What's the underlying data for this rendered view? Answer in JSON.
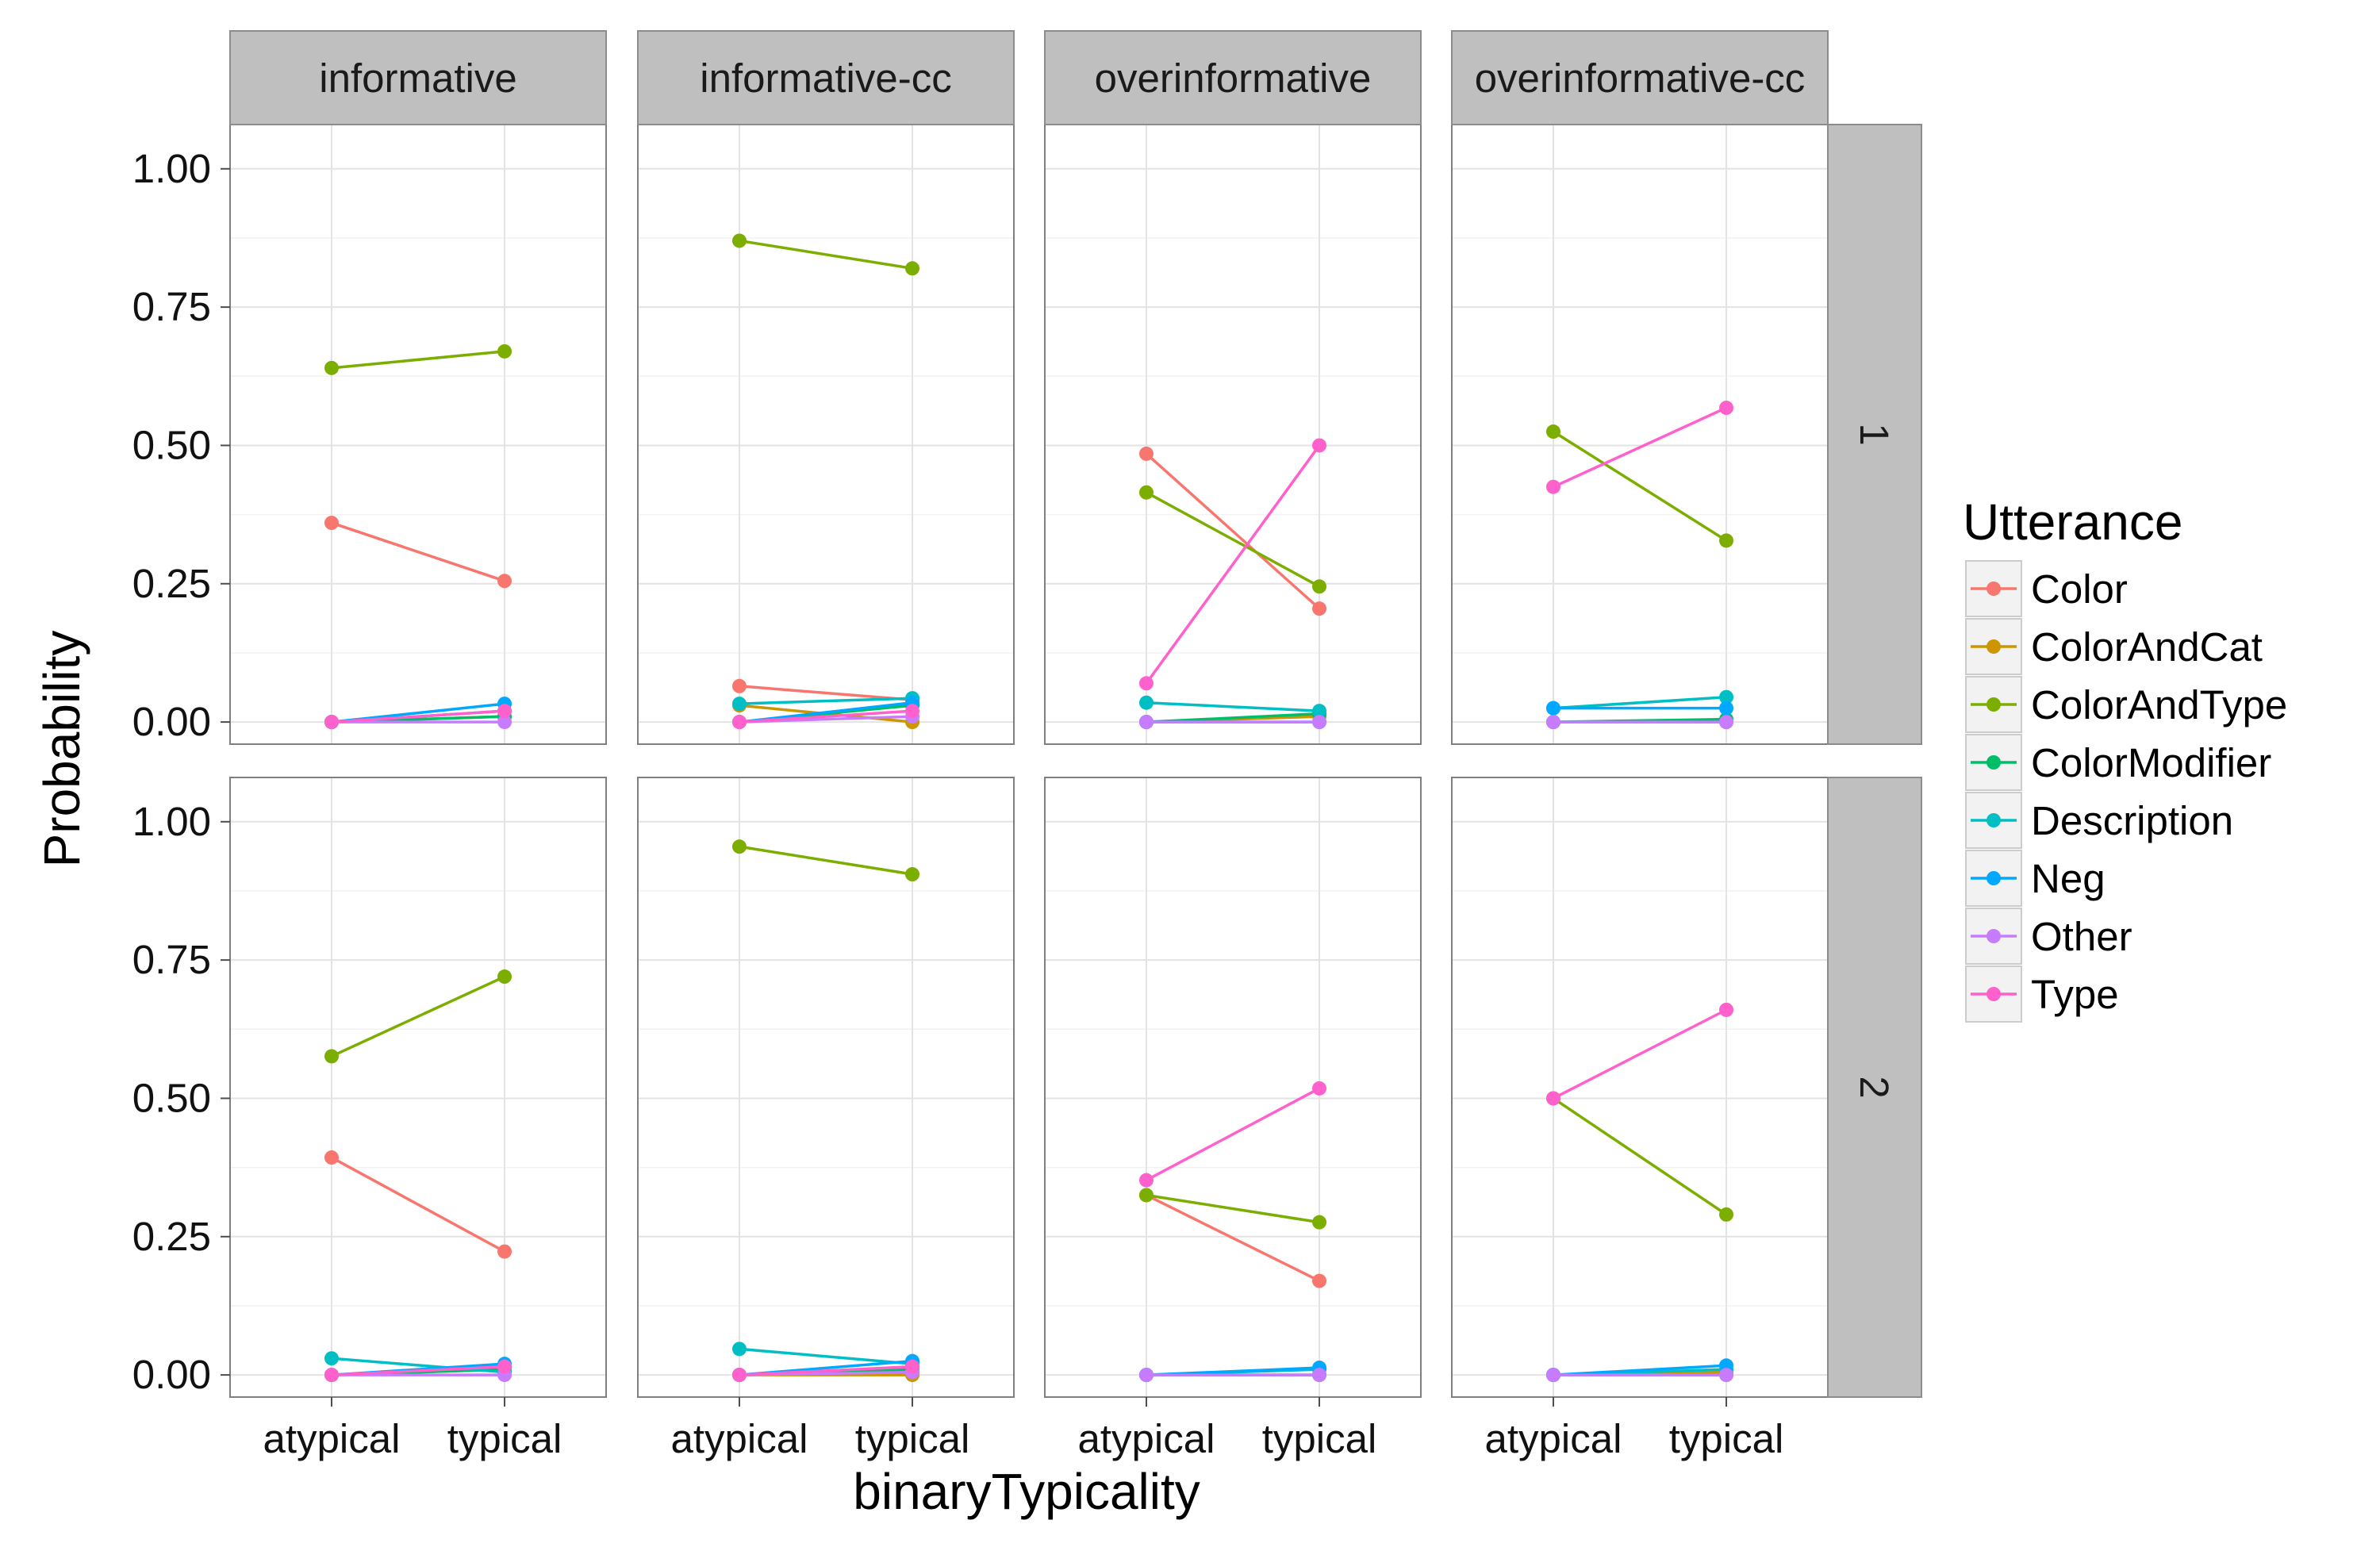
{
  "chart_data": {
    "type": "line",
    "facet_columns": [
      "informative",
      "informative-cc",
      "overinformative",
      "overinformative-cc"
    ],
    "facet_rows": [
      "1",
      "2"
    ],
    "x_categories": [
      "atypical",
      "typical"
    ],
    "xlabel": "binaryTypicality",
    "ylabel": "Probability",
    "ylim": [
      0,
      1
    ],
    "yticks": [
      "0.00",
      "0.25",
      "0.50",
      "0.75",
      "1.00"
    ],
    "grid": true,
    "legend": {
      "title": "Utterance",
      "position": "right",
      "entries": [
        {
          "name": "Color",
          "color": "#F8766D"
        },
        {
          "name": "ColorAndCat",
          "color": "#CD9600"
        },
        {
          "name": "ColorAndType",
          "color": "#7CAE00"
        },
        {
          "name": "ColorModifier",
          "color": "#00BE67"
        },
        {
          "name": "Description",
          "color": "#00BFC4"
        },
        {
          "name": "Neg",
          "color": "#00A9FF"
        },
        {
          "name": "Other",
          "color": "#C77CFF"
        },
        {
          "name": "Type",
          "color": "#FF61CC"
        }
      ]
    },
    "panels": [
      {
        "column": "informative",
        "row": "1",
        "series": {
          "Color": [
            0.36,
            0.255
          ],
          "ColorAndCat": [
            0.0,
            0.01
          ],
          "ColorAndType": [
            0.64,
            0.67
          ],
          "ColorModifier": [
            0.0,
            0.01
          ],
          "Description": [
            0.0,
            0.02
          ],
          "Neg": [
            0.0,
            0.033
          ],
          "Other": [
            0.0,
            0.0
          ],
          "Type": [
            0.0,
            0.02
          ]
        }
      },
      {
        "column": "informative-cc",
        "row": "1",
        "series": {
          "Color": [
            0.065,
            0.04
          ],
          "ColorAndCat": [
            0.03,
            0.0
          ],
          "ColorAndType": [
            0.87,
            0.82
          ],
          "ColorModifier": [
            0.0,
            0.03
          ],
          "Description": [
            0.033,
            0.043
          ],
          "Neg": [
            0.0,
            0.035
          ],
          "Other": [
            0.0,
            0.01
          ],
          "Type": [
            0.0,
            0.02
          ]
        }
      },
      {
        "column": "overinformative",
        "row": "1",
        "series": {
          "Color": [
            0.485,
            0.205
          ],
          "ColorAndCat": [
            0.0,
            0.01
          ],
          "ColorAndType": [
            0.415,
            0.245
          ],
          "ColorModifier": [
            0.0,
            0.015
          ],
          "Description": [
            0.035,
            0.02
          ],
          "Neg": [
            0.0,
            0.0
          ],
          "Other": [
            0.0,
            0.0
          ],
          "Type": [
            0.07,
            0.5
          ]
        }
      },
      {
        "column": "overinformative-cc",
        "row": "1",
        "series": {
          "Color": [
            0.0,
            0.0
          ],
          "ColorAndCat": [
            0.0,
            0.0
          ],
          "ColorAndType": [
            0.525,
            0.328
          ],
          "ColorModifier": [
            0.0,
            0.005
          ],
          "Description": [
            0.025,
            0.045
          ],
          "Neg": [
            0.025,
            0.025
          ],
          "Other": [
            0.0,
            0.0
          ],
          "Type": [
            0.425,
            0.568
          ]
        }
      },
      {
        "column": "informative",
        "row": "2",
        "series": {
          "Color": [
            0.393,
            0.223
          ],
          "ColorAndCat": [
            0.0,
            0.01
          ],
          "ColorAndType": [
            0.576,
            0.72
          ],
          "ColorModifier": [
            0.0,
            0.01
          ],
          "Description": [
            0.03,
            0.005
          ],
          "Neg": [
            0.0,
            0.02
          ],
          "Other": [
            0.0,
            0.0
          ],
          "Type": [
            0.0,
            0.015
          ]
        }
      },
      {
        "column": "informative-cc",
        "row": "2",
        "series": {
          "Color": [
            0.0,
            0.005
          ],
          "ColorAndCat": [
            0.0,
            0.0
          ],
          "ColorAndType": [
            0.955,
            0.905
          ],
          "ColorModifier": [
            0.0,
            0.01
          ],
          "Description": [
            0.047,
            0.02
          ],
          "Neg": [
            0.0,
            0.025
          ],
          "Other": [
            0.0,
            0.005
          ],
          "Type": [
            0.0,
            0.015
          ]
        }
      },
      {
        "column": "overinformative",
        "row": "2",
        "series": {
          "Color": [
            0.325,
            0.17
          ],
          "ColorAndCat": [
            0.0,
            0.0
          ],
          "ColorAndType": [
            0.325,
            0.276
          ],
          "ColorModifier": [
            0.0,
            0.0
          ],
          "Description": [
            0.0,
            0.01
          ],
          "Neg": [
            0.0,
            0.013
          ],
          "Other": [
            0.0,
            0.0
          ],
          "Type": [
            0.352,
            0.518
          ]
        }
      },
      {
        "column": "overinformative-cc",
        "row": "2",
        "series": {
          "Color": [
            0.0,
            0.005
          ],
          "ColorAndCat": [
            0.0,
            0.005
          ],
          "ColorAndType": [
            0.5,
            0.29
          ],
          "ColorModifier": [
            0.0,
            0.0
          ],
          "Description": [
            0.0,
            0.01
          ],
          "Neg": [
            0.0,
            0.017
          ],
          "Other": [
            0.0,
            0.0
          ],
          "Type": [
            0.5,
            0.66
          ]
        }
      }
    ]
  }
}
